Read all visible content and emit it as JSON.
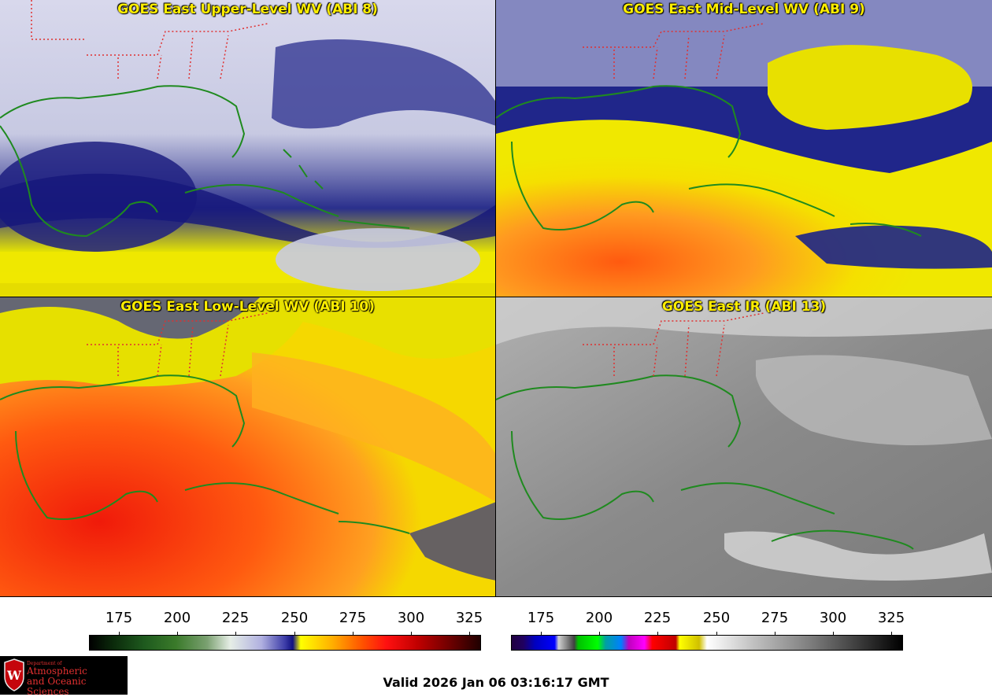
{
  "panels": [
    {
      "title": "GOES East Upper-Level WV (ABI 8)"
    },
    {
      "title": "GOES East Mid-Level WV (ABI 9)"
    },
    {
      "title": "GOES East Low-Level WV (ABI 10)"
    },
    {
      "title": "GOES East IR (ABI 13)"
    }
  ],
  "colorbar_wv": {
    "ticks": [
      "175",
      "200",
      "225",
      "250",
      "275",
      "300",
      "325"
    ]
  },
  "colorbar_ir": {
    "ticks": [
      "175",
      "200",
      "225",
      "250",
      "275",
      "300",
      "325"
    ]
  },
  "logo": {
    "dept": "Department of",
    "line1": "Atmospheric",
    "line2": "and Oceanic Sciences"
  },
  "valid_time": "Valid 2026 Jan 06 03:16:17 GMT",
  "colors": {
    "coastline": "#1f8a1f",
    "state_borders": "#e03030",
    "title": "#ffee00"
  }
}
